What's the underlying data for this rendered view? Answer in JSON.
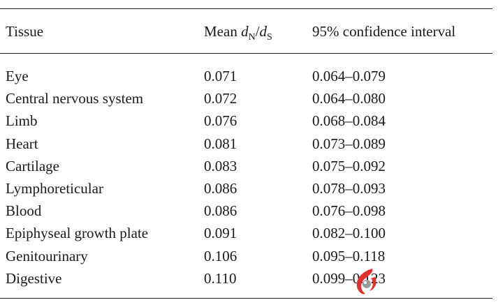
{
  "table": {
    "headers": {
      "tissue": "Tissue",
      "mean_prefix": "Mean ",
      "dn": "d",
      "dn_sub": "N",
      "slash": "/",
      "ds": "d",
      "ds_sub": "S",
      "ci": "95% confidence interval"
    },
    "rows": [
      {
        "tissue": "Eye",
        "mean": "0.071",
        "ci": "0.064–0.079"
      },
      {
        "tissue": "Central nervous system",
        "mean": "0.072",
        "ci": "0.064–0.080"
      },
      {
        "tissue": "Limb",
        "mean": "0.076",
        "ci": "0.068–0.084"
      },
      {
        "tissue": "Heart",
        "mean": "0.081",
        "ci": "0.073–0.089"
      },
      {
        "tissue": "Cartilage",
        "mean": "0.083",
        "ci": "0.075–0.092"
      },
      {
        "tissue": "Lymphoreticular",
        "mean": "0.086",
        "ci": "0.078–0.093"
      },
      {
        "tissue": "Blood",
        "mean": "0.086",
        "ci": "0.076–0.098"
      },
      {
        "tissue": "Epiphyseal growth plate",
        "mean": "0.091",
        "ci": "0.082–0.100"
      },
      {
        "tissue": "Genitourinary",
        "mean": "0.106",
        "ci": "0.095–0.118"
      },
      {
        "tissue": "Digestive",
        "mean": "0.110",
        "ci": "0.099–0.123"
      }
    ]
  },
  "watermark": {
    "icon": "eye-logo-icon",
    "color": "#e03030"
  }
}
